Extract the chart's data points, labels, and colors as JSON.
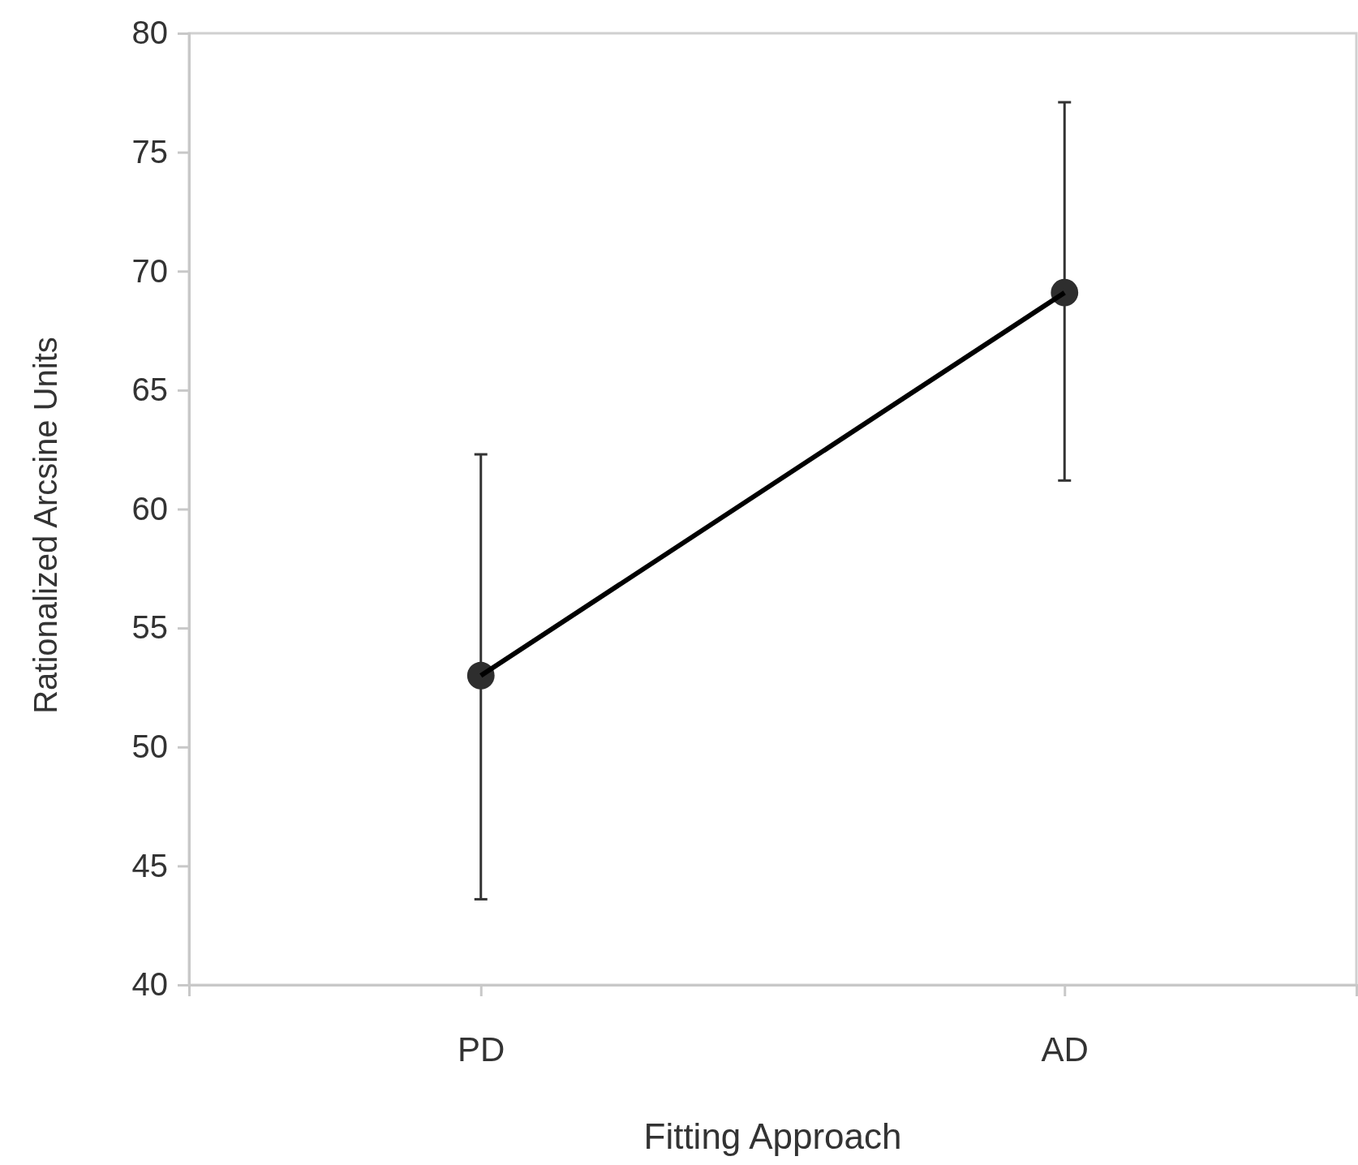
{
  "chart_data": {
    "type": "line",
    "xlabel": "Fitting Approach",
    "ylabel": "Rationalized Arcsine Units",
    "categories": [
      "PD",
      "AD"
    ],
    "series": [
      {
        "color": "#000000",
        "values": [
          53.0,
          69.1
        ],
        "errors": [
          [
            43.6,
            62.3
          ],
          [
            61.2,
            77.1
          ]
        ]
      }
    ],
    "ylim": [
      40,
      80
    ],
    "yticks": [
      40,
      45,
      50,
      55,
      60,
      65,
      70,
      75,
      80
    ],
    "grid": false,
    "marker": "circle",
    "line_style": "solid"
  }
}
